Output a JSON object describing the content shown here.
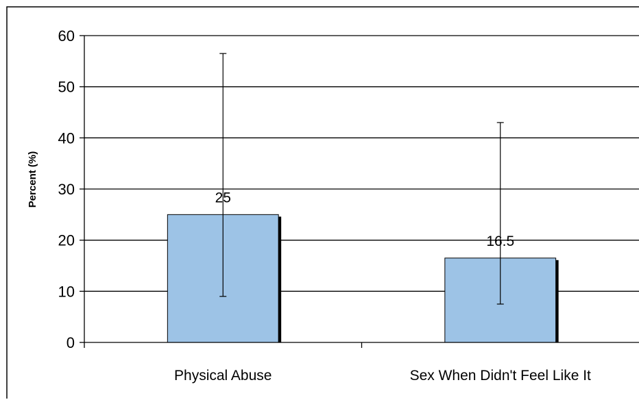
{
  "chart_data": {
    "type": "bar",
    "categories": [
      "Physical Abuse",
      "Sex When Didn't Feel Like It"
    ],
    "values": [
      25,
      16.5
    ],
    "data_labels": [
      "25",
      "16.5"
    ],
    "error_bars": [
      {
        "low": 9,
        "high": 56.5
      },
      {
        "low": 7.5,
        "high": 43
      }
    ],
    "title": "",
    "xlabel": "",
    "ylabel": "Percent (%)",
    "ylim": [
      0,
      60
    ],
    "yticks": [
      "0",
      "10",
      "20",
      "30",
      "40",
      "50",
      "60"
    ],
    "grid": true,
    "legend": "none",
    "colors": {
      "bar_fill": "#9dc3e6",
      "bar_edge": "#000000",
      "grid": "#000000",
      "background": "#ffffff"
    }
  }
}
